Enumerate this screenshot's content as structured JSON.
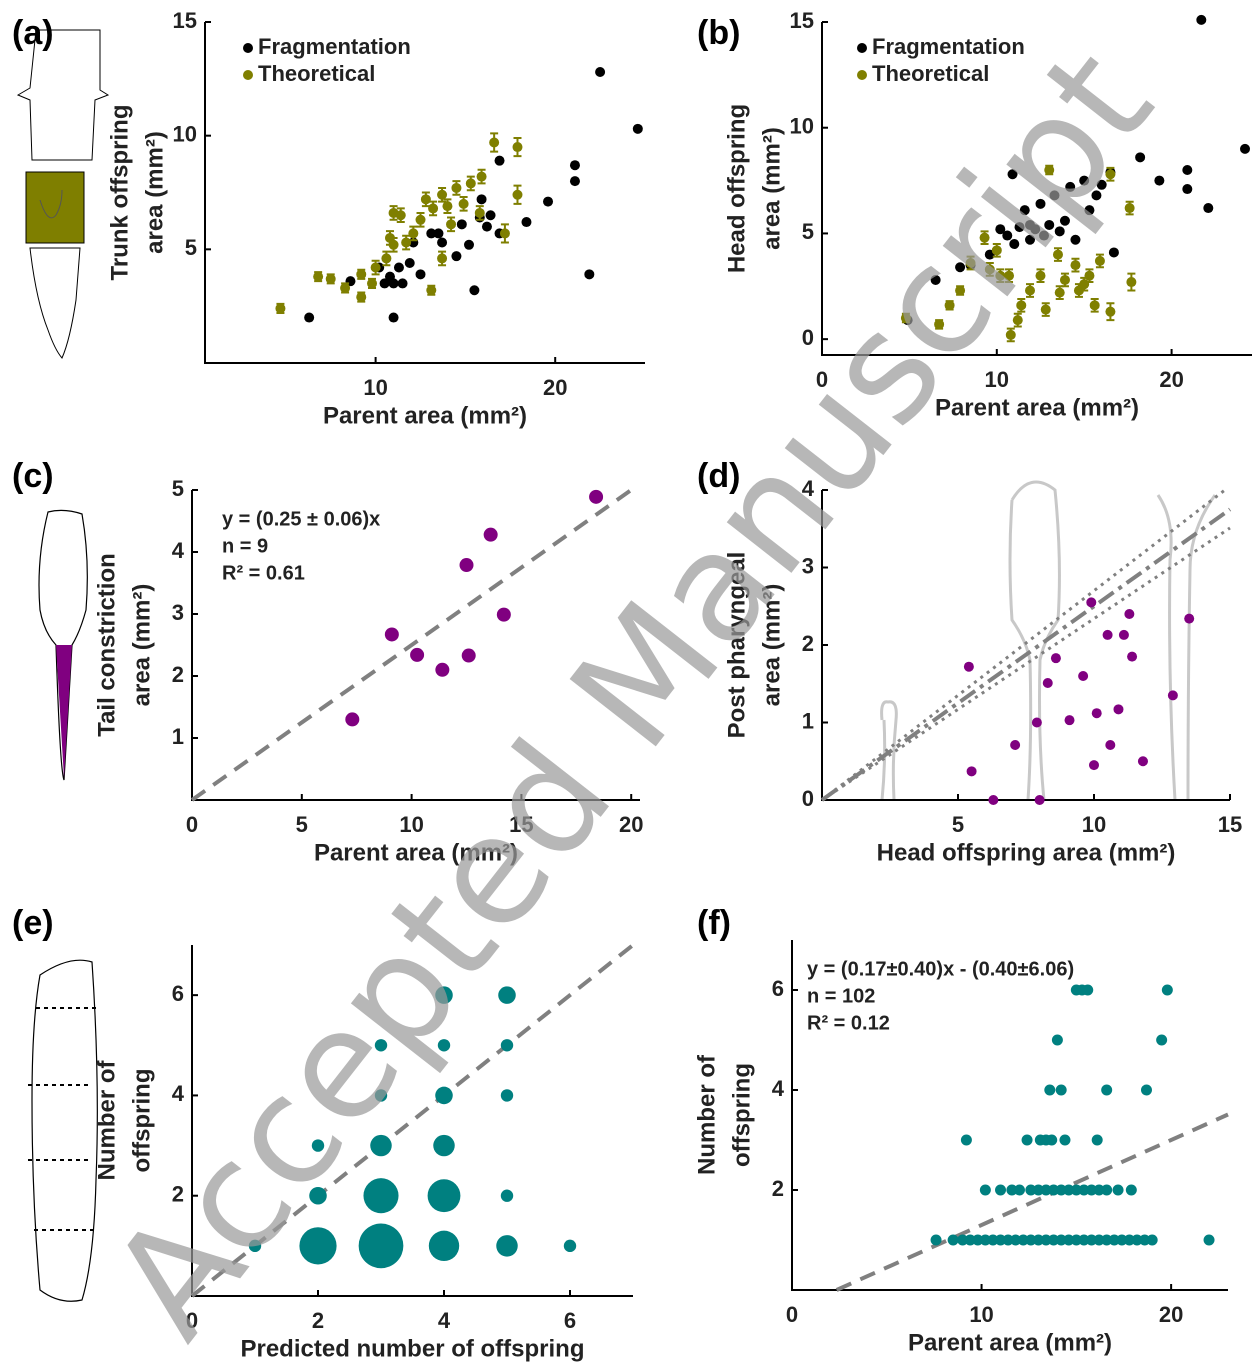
{
  "watermark": "Accepted Manuscript",
  "chart_data": [
    {
      "type": "scatter",
      "panel": "(a)",
      "xlabel": "Parent area (mm²)",
      "ylabel": [
        "Trunk offspring",
        "area (mm²)"
      ],
      "xlim": [
        0.5,
        25
      ],
      "ylim": [
        0,
        15
      ],
      "xticks": [
        10,
        20
      ],
      "yticks": [
        5,
        10,
        15
      ],
      "series": [
        {
          "name": "Fragmentation",
          "color": "#000000",
          "x": [
            6.3,
            11.0,
            15.5,
            22.5,
            24.6,
            21.1,
            21.1,
            21.9,
            19.6,
            18.4,
            16.9,
            16.4,
            16.9,
            15.8,
            15.2,
            14.5,
            13.5,
            13.1,
            13.7,
            12.5,
            11.9,
            11.3,
            10.8,
            10.5,
            11.0,
            11.5,
            10.2,
            8.6,
            12.1,
            15.9,
            14.8,
            16.2
          ],
          "y": [
            2.0,
            2.0,
            3.2,
            12.8,
            10.3,
            8.7,
            8.0,
            3.9,
            7.1,
            6.2,
            8.9,
            6.5,
            5.7,
            6.4,
            5.2,
            4.7,
            5.7,
            5.7,
            5.3,
            3.9,
            4.4,
            4.2,
            3.8,
            3.5,
            3.5,
            3.5,
            4.2,
            3.6,
            5.3,
            7.2,
            6.1,
            6.0
          ]
        },
        {
          "name": "Theoretical",
          "color": "#7f7f00",
          "x": [
            4.7,
            6.8,
            7.5,
            8.3,
            9.2,
            9.8,
            10.0,
            10.6,
            11.0,
            11.4,
            10.8,
            11.7,
            12.1,
            12.5,
            12.8,
            13.2,
            13.7,
            14.0,
            14.5,
            14.9,
            15.3,
            15.9,
            16.6,
            17.9,
            17.9,
            17.2,
            13.1,
            11.0,
            13.7,
            9.2,
            14.2,
            15.8
          ],
          "y": [
            2.4,
            3.8,
            3.7,
            3.3,
            2.9,
            3.5,
            4.2,
            4.6,
            6.6,
            6.5,
            5.5,
            5.3,
            5.7,
            6.3,
            7.2,
            6.8,
            7.4,
            6.9,
            7.7,
            7.0,
            7.9,
            8.2,
            9.7,
            9.5,
            7.4,
            5.7,
            3.2,
            5.2,
            4.6,
            3.9,
            6.1,
            6.6
          ],
          "errors": [
            0.2,
            0.2,
            0.2,
            0.2,
            0.2,
            0.2,
            0.3,
            0.3,
            0.3,
            0.3,
            0.3,
            0.3,
            0.3,
            0.3,
            0.3,
            0.3,
            0.3,
            0.3,
            0.3,
            0.3,
            0.3,
            0.3,
            0.4,
            0.4,
            0.4,
            0.4,
            0.2,
            0.3,
            0.3,
            0.2,
            0.3,
            0.3
          ]
        }
      ]
    },
    {
      "type": "scatter",
      "panel": "(b)",
      "xlabel": "Parent area (mm²)",
      "ylabel": [
        "Head offspring",
        "area (mm²)"
      ],
      "xlim": [
        0,
        24.6
      ],
      "ylim": [
        -0.75,
        15
      ],
      "xticks": [
        0,
        10,
        20
      ],
      "yticks": [
        0,
        5,
        10,
        15
      ],
      "series": [
        {
          "name": "Fragmentation",
          "color": "#000000",
          "x": [
            21.7,
            24.2,
            18.2,
            19.3,
            20.9,
            20.9,
            22.1,
            16.5,
            15.0,
            14.2,
            13.3,
            12.5,
            11.6,
            10.9,
            16.0,
            15.7,
            15.3,
            13.9,
            13.0,
            12.2,
            11.3,
            10.6,
            10.2,
            11.0,
            11.9,
            12.7,
            13.6,
            14.5,
            16.7,
            9.6,
            8.5,
            7.9,
            6.5,
            4.9,
            11.9
          ],
          "y": [
            15.1,
            9.0,
            8.6,
            7.5,
            8.0,
            7.1,
            6.2,
            7.9,
            7.5,
            7.2,
            6.8,
            6.4,
            6.1,
            7.8,
            7.3,
            6.8,
            6.1,
            5.6,
            5.4,
            5.2,
            5.3,
            4.9,
            5.2,
            4.5,
            4.7,
            4.9,
            5.1,
            4.7,
            4.1,
            4.0,
            3.5,
            3.4,
            2.8,
            0.9,
            5.4
          ]
        },
        {
          "name": "Theoretical",
          "color": "#7f7f00",
          "x": [
            4.8,
            6.7,
            7.3,
            7.9,
            8.5,
            9.3,
            10.0,
            10.7,
            10.8,
            11.2,
            11.4,
            11.9,
            12.5,
            12.8,
            13.0,
            13.5,
            13.9,
            14.5,
            14.7,
            15.3,
            15.6,
            15.9,
            16.5,
            17.6,
            16.5,
            17.7,
            10.2,
            13.6,
            15.0,
            9.6
          ],
          "y": [
            1.0,
            0.7,
            1.6,
            2.3,
            3.6,
            4.8,
            4.2,
            3.0,
            0.2,
            0.9,
            1.6,
            2.3,
            3.0,
            1.4,
            8.0,
            4.0,
            2.8,
            3.5,
            2.3,
            3.0,
            1.6,
            3.7,
            7.8,
            6.2,
            1.3,
            2.7,
            3.0,
            2.2,
            2.6,
            3.3
          ],
          "errors": [
            0.2,
            0.2,
            0.2,
            0.2,
            0.3,
            0.3,
            0.3,
            0.3,
            0.3,
            0.3,
            0.3,
            0.3,
            0.3,
            0.3,
            0.2,
            0.3,
            0.3,
            0.3,
            0.3,
            0.3,
            0.3,
            0.3,
            0.3,
            0.3,
            0.4,
            0.4,
            0.3,
            0.3,
            0.3,
            0.3
          ]
        }
      ]
    },
    {
      "type": "scatter",
      "panel": "(c)",
      "xlabel": "Parent area (mm²)",
      "ylabel": [
        "Tail constriction",
        "area (mm²)"
      ],
      "xlim": [
        0,
        20.4
      ],
      "ylim": [
        0,
        5
      ],
      "xticks": [
        0,
        5,
        10,
        15,
        20
      ],
      "yticks": [
        1,
        2,
        3,
        4,
        5
      ],
      "annotations": [
        "y = (0.25 ± 0.06)x",
        "n = 9",
        "R² = 0.61"
      ],
      "fit_lines": [
        {
          "slope": 0.25,
          "intercept": 0,
          "style": "dashed"
        }
      ],
      "series": [
        {
          "color": "#800080",
          "x": [
            7.3,
            9.1,
            10.25,
            11.4,
            12.6,
            12.5,
            13.6,
            14.2,
            18.4
          ],
          "y": [
            1.3,
            2.67,
            2.34,
            2.1,
            2.33,
            3.79,
            4.28,
            2.99,
            4.89
          ]
        }
      ]
    },
    {
      "type": "scatter",
      "panel": "(d)",
      "xlabel": "Head offspring area (mm²)",
      "ylabel": [
        "Post pharyngeal",
        "area (mm²)"
      ],
      "xlim": [
        0,
        15
      ],
      "ylim": [
        0,
        4
      ],
      "xticks": [
        5,
        10,
        15
      ],
      "yticks": [
        0,
        1,
        2,
        3,
        4
      ],
      "fit_lines": [
        {
          "slope": 0.25,
          "intercept": 0,
          "style": "dashdot"
        },
        {
          "slope": 0.27,
          "intercept": 0,
          "style": "dotted"
        },
        {
          "slope": 0.234,
          "intercept": 0,
          "style": "dotted"
        }
      ],
      "series": [
        {
          "color": "#800080",
          "x": [
            5.5,
            6.3,
            7.1,
            7.9,
            8.0,
            8.3,
            8.6,
            9.1,
            9.6,
            10.0,
            10.1,
            10.6,
            10.5,
            10.9,
            11.1,
            11.3,
            11.4,
            11.8,
            12.9,
            13.5,
            9.9,
            5.4
          ],
          "y": [
            0.37,
            0,
            0.71,
            1.0,
            0,
            1.51,
            1.83,
            1.03,
            1.6,
            0.45,
            1.12,
            0.71,
            2.13,
            1.17,
            2.13,
            2.4,
            1.85,
            0.5,
            1.35,
            2.34,
            2.55,
            1.72
          ]
        }
      ]
    },
    {
      "type": "bubble",
      "panel": "(e)",
      "xlabel": "Predicted number of offspring",
      "ylabel": [
        "Number of",
        "offspring"
      ],
      "xlim": [
        0,
        7
      ],
      "ylim": [
        0,
        7
      ],
      "xticks": [
        0,
        2,
        4,
        6
      ],
      "yticks": [
        2,
        4,
        6
      ],
      "fit_lines": [
        {
          "slope": 1,
          "intercept": 0,
          "style": "dashed"
        }
      ],
      "series": [
        {
          "color": "#008080",
          "x": [
            1,
            2,
            3,
            4,
            5,
            6,
            2,
            3,
            4,
            5,
            2,
            3,
            4,
            3,
            4,
            5,
            3,
            4,
            5,
            4,
            5
          ],
          "y": [
            1,
            1,
            1,
            1,
            1,
            1,
            2,
            2,
            2,
            2,
            3,
            3,
            3,
            4,
            4,
            4,
            5,
            5,
            5,
            6,
            6
          ],
          "sizes": [
            1,
            9,
            13,
            6,
            3,
            1,
            2,
            8,
            7,
            1,
            1,
            3,
            3,
            1,
            2,
            1,
            1,
            1,
            1,
            2,
            2
          ]
        }
      ]
    },
    {
      "type": "scatter",
      "panel": "(f)",
      "xlabel": "Parent area (mm²)",
      "ylabel": [
        "Number of",
        "offspring"
      ],
      "xlim": [
        0,
        23
      ],
      "ylim": [
        0,
        7
      ],
      "xticks": [
        0,
        10,
        20
      ],
      "yticks": [
        2,
        4,
        6
      ],
      "annotations": [
        "y = (0.17±0.40)x - (0.40±6.06)",
        "n = 102",
        "R² = 0.12"
      ],
      "fit_lines": [
        {
          "slope": 0.17,
          "intercept": -0.4,
          "style": "dashed"
        }
      ],
      "series": [
        {
          "color": "#008080",
          "x": [
            7.6,
            8.5,
            9.0,
            9.4,
            9.8,
            10.2,
            10.6,
            11.0,
            11.4,
            11.8,
            12.2,
            12.6,
            13.0,
            13.4,
            13.8,
            14.2,
            14.6,
            15.0,
            15.4,
            15.8,
            16.2,
            16.6,
            17.0,
            17.4,
            17.8,
            18.2,
            18.6,
            19.0,
            22.0,
            10.2,
            11.0,
            11.6,
            12.0,
            12.6,
            13.0,
            13.4,
            13.8,
            14.2,
            14.6,
            15.0,
            15.4,
            15.8,
            16.2,
            16.6,
            17.2,
            17.9,
            9.2,
            12.4,
            13.1,
            13.4,
            13.7,
            14.4,
            16.1,
            13.6,
            14.2,
            16.6,
            18.7,
            14.0,
            19.5,
            15.0,
            15.3,
            15.6,
            19.8
          ],
          "y": [
            1,
            1,
            1,
            1,
            1,
            1,
            1,
            1,
            1,
            1,
            1,
            1,
            1,
            1,
            1,
            1,
            1,
            1,
            1,
            1,
            1,
            1,
            1,
            1,
            1,
            1,
            1,
            1,
            1,
            2,
            2,
            2,
            2,
            2,
            2,
            2,
            2,
            2,
            2,
            2,
            2,
            2,
            2,
            2,
            2,
            2,
            3,
            3,
            3,
            3,
            3,
            3,
            3,
            4,
            4,
            4,
            4,
            5,
            5,
            6,
            6,
            6,
            6
          ]
        }
      ]
    }
  ]
}
